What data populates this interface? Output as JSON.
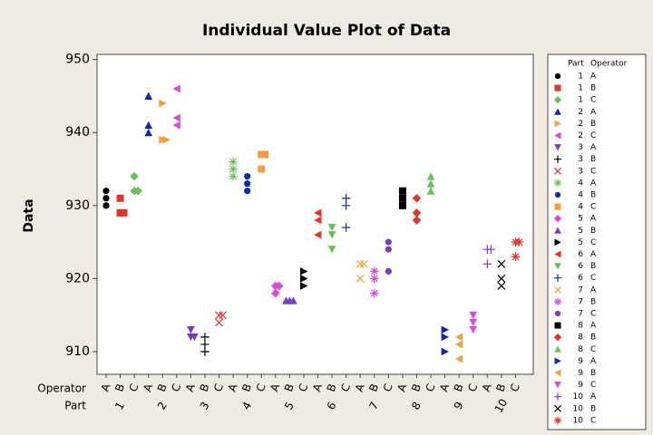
{
  "chart_data": {
    "type": "individual_value",
    "title": "Individual Value Plot of Data",
    "y_label": "Data",
    "x_row_labels": [
      "Operator",
      "Part"
    ],
    "legend_title": [
      "Part",
      "Operator"
    ],
    "ylim": [
      906.9,
      950.7
    ],
    "yticks": [
      910,
      920,
      930,
      940,
      950
    ],
    "parts": [
      {
        "label": "1",
        "groups": [
          {
            "operator": "A",
            "marker": "circle",
            "color": "#000000",
            "values": [
              932,
              931,
              930
            ]
          },
          {
            "operator": "B",
            "marker": "square",
            "color": "#e0352b",
            "values": [
              931,
              929,
              929
            ]
          },
          {
            "operator": "C",
            "marker": "diamond",
            "color": "#6cc05a",
            "values": [
              934,
              932,
              932
            ]
          }
        ]
      },
      {
        "label": "2",
        "groups": [
          {
            "operator": "A",
            "marker": "tri-up",
            "color": "#1427b0",
            "values": [
              945,
              941,
              940
            ]
          },
          {
            "operator": "B",
            "marker": "tri-right",
            "color": "#f0a040",
            "values": [
              944,
              939,
              939
            ]
          },
          {
            "operator": "C",
            "marker": "tri-left",
            "color": "#d84ad8",
            "values": [
              946,
              942,
              941
            ]
          }
        ]
      },
      {
        "label": "3",
        "groups": [
          {
            "operator": "A",
            "marker": "tri-down",
            "color": "#7a3cc0",
            "values": [
              913,
              912,
              912
            ]
          },
          {
            "operator": "B",
            "marker": "plus",
            "color": "#000000",
            "values": [
              912,
              911,
              910
            ]
          },
          {
            "operator": "C",
            "marker": "cross",
            "color": "#e0352b",
            "values": [
              915,
              915,
              914
            ]
          }
        ]
      },
      {
        "label": "4",
        "groups": [
          {
            "operator": "A",
            "marker": "asterisk",
            "color": "#6cc05a",
            "values": [
              936,
              935,
              934
            ]
          },
          {
            "operator": "B",
            "marker": "circle",
            "color": "#1427b0",
            "values": [
              934,
              933,
              932
            ]
          },
          {
            "operator": "C",
            "marker": "square",
            "color": "#f0a040",
            "values": [
              937,
              937,
              935
            ]
          }
        ]
      },
      {
        "label": "5",
        "groups": [
          {
            "operator": "A",
            "marker": "diamond",
            "color": "#d84ad8",
            "values": [
              919,
              919,
              918
            ]
          },
          {
            "operator": "B",
            "marker": "tri-up",
            "color": "#7a3cc0",
            "values": [
              917,
              917,
              917
            ]
          },
          {
            "operator": "C",
            "marker": "tri-right",
            "color": "#000000",
            "values": [
              921,
              920,
              919
            ]
          }
        ]
      },
      {
        "label": "6",
        "groups": [
          {
            "operator": "A",
            "marker": "tri-left",
            "color": "#e0352b",
            "values": [
              929,
              928,
              926
            ]
          },
          {
            "operator": "B",
            "marker": "tri-down",
            "color": "#6cc05a",
            "values": [
              927,
              926,
              924
            ]
          },
          {
            "operator": "C",
            "marker": "plus",
            "color": "#1427b0",
            "values": [
              931,
              930,
              927
            ]
          }
        ]
      },
      {
        "label": "7",
        "groups": [
          {
            "operator": "A",
            "marker": "cross",
            "color": "#f0a040",
            "values": [
              922,
              922,
              920
            ]
          },
          {
            "operator": "B",
            "marker": "asterisk",
            "color": "#d84ad8",
            "values": [
              921,
              920,
              918
            ]
          },
          {
            "operator": "C",
            "marker": "circle",
            "color": "#7a3cc0",
            "values": [
              925,
              924,
              921
            ]
          }
        ]
      },
      {
        "label": "8",
        "groups": [
          {
            "operator": "A",
            "marker": "square",
            "color": "#000000",
            "values": [
              932,
              931,
              930
            ]
          },
          {
            "operator": "B",
            "marker": "diamond",
            "color": "#e0352b",
            "values": [
              931,
              929,
              928
            ]
          },
          {
            "operator": "C",
            "marker": "tri-up",
            "color": "#6cc05a",
            "values": [
              934,
              933,
              932
            ]
          }
        ]
      },
      {
        "label": "9",
        "groups": [
          {
            "operator": "A",
            "marker": "tri-right",
            "color": "#1427b0",
            "values": [
              913,
              912,
              910
            ]
          },
          {
            "operator": "B",
            "marker": "tri-left",
            "color": "#f0a040",
            "values": [
              912,
              911,
              909
            ]
          },
          {
            "operator": "C",
            "marker": "tri-down",
            "color": "#d84ad8",
            "values": [
              915,
              914,
              913
            ]
          }
        ]
      },
      {
        "label": "10",
        "groups": [
          {
            "operator": "A",
            "marker": "plus",
            "color": "#7a3cc0",
            "values": [
              924,
              924,
              922
            ]
          },
          {
            "operator": "B",
            "marker": "cross",
            "color": "#000000",
            "values": [
              922,
              920,
              919
            ]
          },
          {
            "operator": "C",
            "marker": "asterisk",
            "color": "#e0352b",
            "values": [
              925,
              925,
              923
            ]
          }
        ]
      }
    ]
  }
}
